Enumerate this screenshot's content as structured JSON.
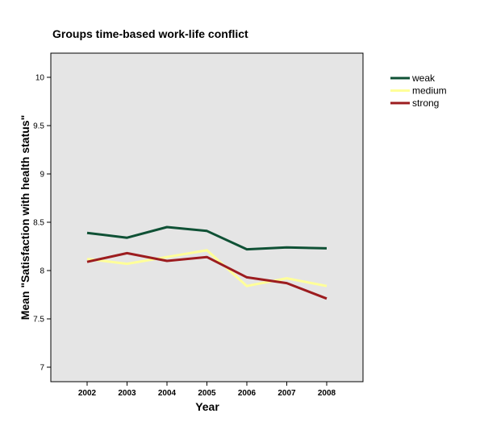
{
  "chart_data": {
    "type": "line",
    "title": "Groups time-based work-life conflict",
    "xlabel": "Year",
    "ylabel": "Mean \"Satisfaction with health status\"",
    "x": [
      "2002",
      "2003",
      "2004",
      "2005",
      "2006",
      "2007",
      "2008"
    ],
    "yticks": [
      "7",
      "7.5",
      "8",
      "8.5",
      "9",
      "9.5",
      "10"
    ],
    "ylim": [
      6.85,
      10.25
    ],
    "grid": false,
    "legend_position": "top-right",
    "series": [
      {
        "name": "weak",
        "color": "#0f5135",
        "values": [
          8.39,
          8.34,
          8.45,
          8.41,
          8.22,
          8.24,
          8.23
        ]
      },
      {
        "name": "medium",
        "color": "#ffff99",
        "values": [
          8.12,
          8.07,
          8.14,
          8.21,
          7.84,
          7.92,
          7.84
        ]
      },
      {
        "name": "strong",
        "color": "#9c1c1f",
        "values": [
          8.09,
          8.18,
          8.1,
          8.14,
          7.93,
          7.87,
          7.71
        ]
      }
    ]
  }
}
